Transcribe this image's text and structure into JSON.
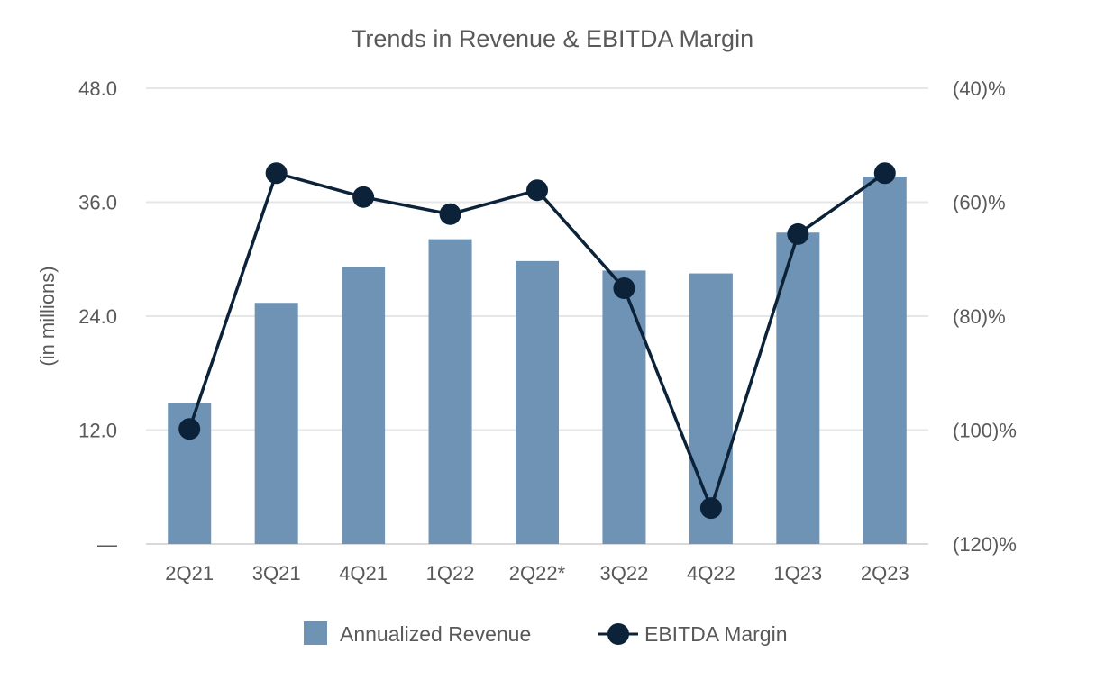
{
  "chart_data": {
    "type": "bar+line",
    "title": "Trends in Revenue & EBITDA Margin",
    "ylabel": "(in millions)",
    "categories": [
      "2Q21",
      "3Q21",
      "4Q21",
      "1Q22",
      "2Q22*",
      "3Q22",
      "4Q22",
      "1Q23",
      "2Q23"
    ],
    "y_left": {
      "lim": [
        0,
        48
      ],
      "ticks": [
        0,
        12,
        24,
        36,
        48
      ],
      "tick_labels": [
        "—",
        "12.0",
        "24.0",
        "36.0",
        "48.0"
      ]
    },
    "y_right": {
      "lim": [
        -120,
        -40
      ],
      "ticks": [
        -120,
        -100,
        -80,
        -60,
        -40
      ],
      "tick_labels": [
        "(120)%",
        "(100)%",
        "(80)%",
        "(60)%",
        "(40)%"
      ]
    },
    "grid": true,
    "legend_position": "bottom",
    "series": [
      {
        "name": "Annualized Revenue",
        "type": "bar",
        "axis": "left",
        "color": "#6f93b4",
        "values": [
          14.8,
          25.4,
          29.2,
          32.1,
          29.8,
          28.8,
          28.5,
          32.8,
          38.7
        ]
      },
      {
        "name": "EBITDA Margin",
        "type": "line",
        "axis": "right",
        "color": "#0b2239",
        "values": [
          -99.8,
          -54.9,
          -59.1,
          -62.1,
          -57.9,
          -75.1,
          -113.7,
          -65.6,
          -54.9
        ]
      }
    ]
  }
}
